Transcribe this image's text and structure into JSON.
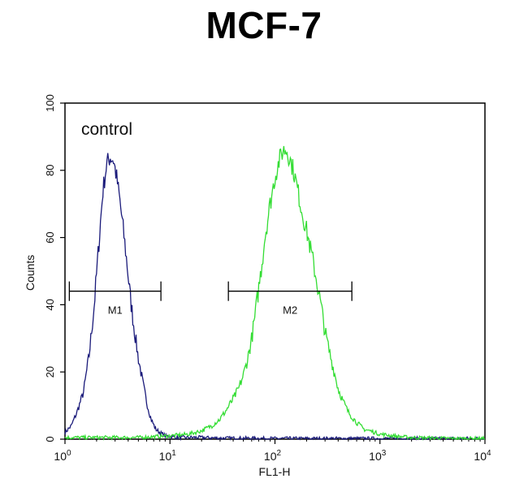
{
  "chart_data": {
    "type": "line",
    "title": "MCF-7",
    "xlabel": "FL1-H",
    "ylabel": "Counts",
    "x_scale": "log",
    "xlim": [
      1,
      10000
    ],
    "ylim": [
      0,
      100
    ],
    "x_ticks": [
      {
        "value": 1,
        "base": "10",
        "exp": "0"
      },
      {
        "value": 10,
        "base": "10",
        "exp": "1"
      },
      {
        "value": 100,
        "base": "10",
        "exp": "2"
      },
      {
        "value": 1000,
        "base": "10",
        "exp": "3"
      },
      {
        "value": 10000,
        "base": "10",
        "exp": "4"
      }
    ],
    "y_ticks": [
      0,
      20,
      40,
      60,
      80,
      100
    ],
    "grid": false,
    "series": [
      {
        "name": "control",
        "color": "#1a1a7a",
        "x": [
          1,
          1.15,
          1.3,
          1.5,
          1.7,
          1.9,
          2.1,
          2.3,
          2.5,
          2.7,
          2.9,
          3.1,
          3.3,
          3.6,
          3.9,
          4.2,
          4.6,
          5.0,
          5.5,
          6.0,
          6.6,
          7.3,
          8.0,
          9.0,
          10,
          12,
          15,
          20,
          30,
          50,
          100,
          300,
          1000,
          10000
        ],
        "y": [
          2,
          4,
          8,
          14,
          25,
          40,
          58,
          74,
          82,
          84,
          83,
          78,
          72,
          62,
          52,
          42,
          32,
          24,
          17,
          11,
          6,
          3,
          2,
          1,
          0.8,
          0.5,
          0.5,
          0.5,
          0.3,
          0.3,
          0.2,
          0.2,
          0.2,
          0.2
        ]
      },
      {
        "name": "",
        "color": "#33dd33",
        "x": [
          1,
          5,
          10,
          15,
          20,
          25,
          30,
          35,
          40,
          45,
          50,
          55,
          60,
          65,
          70,
          75,
          80,
          90,
          100,
          110,
          120,
          130,
          140,
          150,
          160,
          170,
          180,
          200,
          220,
          240,
          260,
          280,
          300,
          330,
          360,
          400,
          450,
          500,
          600,
          700,
          800,
          1000,
          1500,
          2000,
          5000,
          10000
        ],
        "y": [
          0.5,
          0.5,
          1,
          1.5,
          2.5,
          4,
          6,
          9,
          12,
          15,
          19,
          24,
          30,
          37,
          45,
          52,
          60,
          70,
          78,
          83,
          86,
          86,
          83,
          80,
          76,
          72,
          68,
          62,
          56,
          50,
          44,
          38,
          32,
          26,
          21,
          15,
          11,
          8,
          5,
          3,
          2.5,
          1.5,
          0.8,
          0.5,
          0.2,
          0.2
        ]
      }
    ],
    "annotations": [
      {
        "text": "control"
      }
    ],
    "markers": [
      {
        "label": "M1",
        "x_start": 1.1,
        "x_end": 8.2,
        "y": 45
      },
      {
        "label": "M2",
        "x_start": 36,
        "x_end": 540,
        "y": 45
      }
    ]
  }
}
